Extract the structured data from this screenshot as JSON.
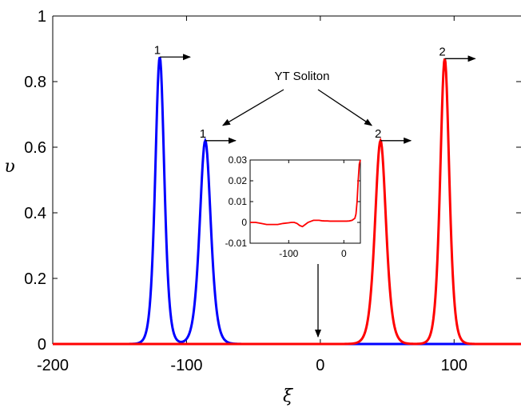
{
  "chart_data": [
    {
      "type": "line",
      "title": "",
      "xlabel": "ξ",
      "ylabel": "υ",
      "xlim": [
        -200,
        150
      ],
      "ylim": [
        0,
        1
      ],
      "xticks": [
        -200,
        -100,
        0,
        100
      ],
      "yticks": [
        0,
        0.2,
        0.4,
        0.6,
        0.8,
        1
      ],
      "xtick_labels": [
        "-200",
        "-100",
        "0",
        "100"
      ],
      "ytick_labels": [
        "0",
        "0.2",
        "0.4",
        "0.6",
        "0.8",
        "1"
      ],
      "grid": false,
      "series": [
        {
          "color": "#0000ff",
          "peaks": [
            {
              "center": -120,
              "amplitude": 0.875,
              "width": 4.5
            },
            {
              "center": -86,
              "amplitude": 0.62,
              "width": 5.5
            }
          ]
        },
        {
          "color": "#ff0000",
          "peaks": [
            {
              "center": 45,
              "amplitude": 0.62,
              "width": 5.5
            },
            {
              "center": 93,
              "amplitude": 0.87,
              "width": 4.5
            }
          ]
        }
      ],
      "annotations": [
        {
          "text": "1",
          "x": -120,
          "y": 0.875
        },
        {
          "text": "1",
          "x": -86,
          "y": 0.62
        },
        {
          "text": "2",
          "x": 45,
          "y": 0.62
        },
        {
          "text": "2",
          "x": 93,
          "y": 0.87
        },
        {
          "text": "YT Soliton",
          "points_to": [
            [
              -86,
              0.62
            ],
            [
              45,
              0.62
            ]
          ]
        }
      ]
    },
    {
      "type": "line",
      "title": "",
      "xlim": [
        -170,
        30
      ],
      "ylim": [
        -0.01,
        0.03
      ],
      "xticks": [
        -100,
        0
      ],
      "yticks": [
        -0.01,
        0,
        0.01,
        0.02,
        0.03
      ],
      "xtick_labels": [
        "-100",
        "0"
      ],
      "ytick_labels": [
        "-0.01",
        "0",
        "0.01",
        "0.02",
        "0.03"
      ],
      "series": [
        {
          "color": "#ff0000",
          "x": [
            -170,
            -160,
            -150,
            -140,
            -130,
            -120,
            -110,
            -100,
            -95,
            -90,
            -85,
            -80,
            -75,
            -70,
            -65,
            -60,
            -55,
            -50,
            -45,
            -40,
            -35,
            -30,
            -25,
            -20,
            -15,
            -10,
            -5,
            0,
            5,
            10,
            15,
            20,
            22,
            24,
            26,
            28,
            30
          ],
          "y": [
            0.0,
            0.0,
            -0.0005,
            -0.001,
            -0.001,
            -0.001,
            -0.0005,
            -0.0002,
            0.0,
            0.0,
            -0.0005,
            -0.0015,
            -0.002,
            -0.001,
            0.0,
            0.0005,
            0.001,
            0.001,
            0.001,
            0.0008,
            0.0007,
            0.0007,
            0.0006,
            0.0006,
            0.0006,
            0.0006,
            0.0006,
            0.0006,
            0.0006,
            0.0007,
            0.001,
            0.002,
            0.004,
            0.01,
            0.02,
            0.028,
            0.03
          ]
        }
      ]
    }
  ]
}
